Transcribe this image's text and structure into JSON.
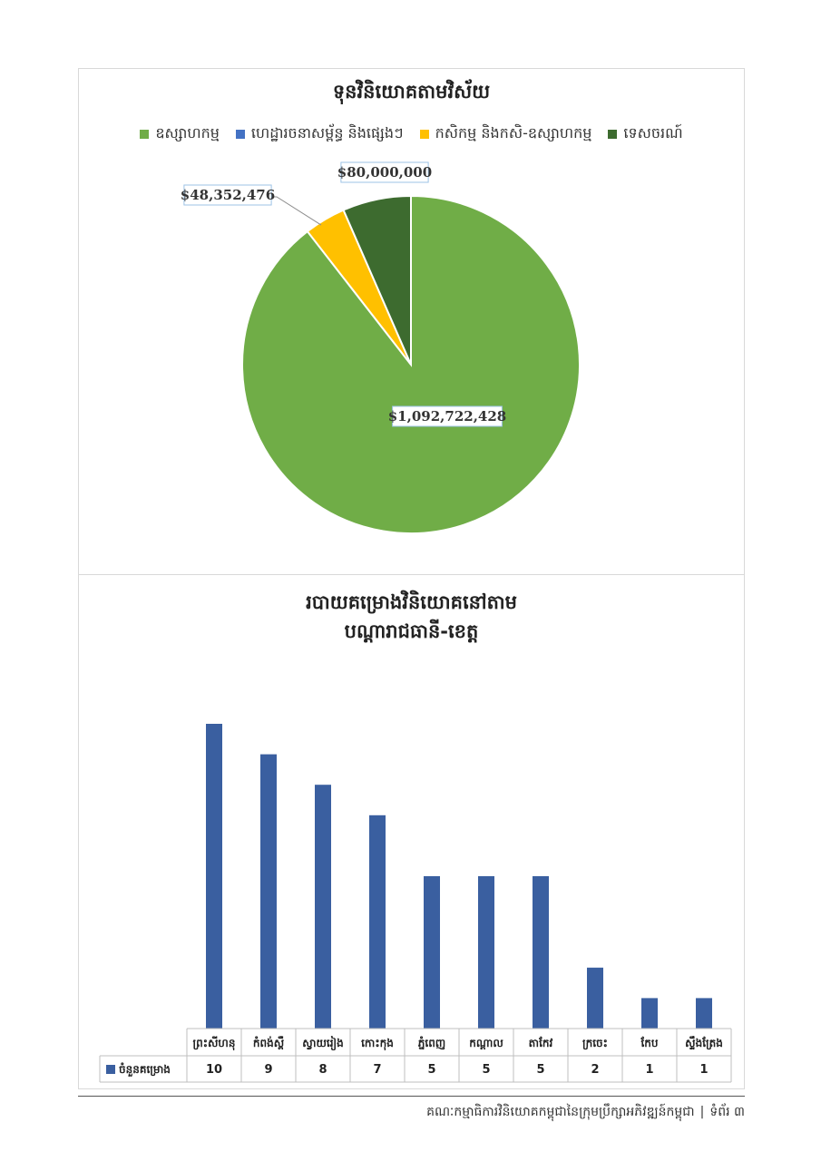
{
  "pie_chart": {
    "title": "ទុនវិនិយោគតាមវិស័យ",
    "legend": [
      {
        "label": "ឧស្សាហកម្ម",
        "color": "#70ad47"
      },
      {
        "label": "ហេដ្ឋារចនាសម្ព័ន្ធ និងផ្សេងៗ",
        "color": "#4472c4"
      },
      {
        "label": "កសិកម្ម និងកសិ-ឧស្សាហកម្ម",
        "color": "#ffc000"
      },
      {
        "label": "ទេសចរណ៍",
        "color": "#3d6b2f"
      }
    ]
  },
  "bar_chart": {
    "title_line1": "របាយគម្រោងវិនិយោគនៅតាម",
    "title_line2": "បណ្ដារាជធានី-ខេត្ត",
    "row_label": "ចំនួនគម្រោង",
    "bar_color": "#3a5fa0"
  },
  "chart_data": [
    {
      "type": "pie",
      "title": "ទុនវិនិយោគតាមវិស័យ",
      "series": [
        {
          "name": "ឧស្សាហកម្ម",
          "value": 1092722428,
          "label": "$1,092,722,428",
          "color": "#70ad47"
        },
        {
          "name": "ហេដ្ឋារចនាសម្ព័ន្ធ និងផ្សេងៗ",
          "value": 0,
          "label": "",
          "color": "#4472c4"
        },
        {
          "name": "កសិកម្ម និងកសិ-ឧស្សាហកម្ម",
          "value": 48352476,
          "label": "$48,352,476",
          "color": "#ffc000"
        },
        {
          "name": "ទេសចរណ៍",
          "value": 80000000,
          "label": "$80,000,000",
          "color": "#3d6b2f"
        }
      ]
    },
    {
      "type": "bar",
      "title": "របាយគម្រោងវិនិយោគនៅតាម បណ្ដារាជធានី-ខេត្ត",
      "categories": [
        "ព្រះសីហនុ",
        "កំពង់ស្ពឺ",
        "ស្វាយរៀង",
        "កោះកុង",
        "ភ្នំពេញ",
        "កណ្ដាល",
        "តាកែវ",
        "ក្រចេះ",
        "កែប",
        "ស្ទឹងត្រែង"
      ],
      "series": [
        {
          "name": "ចំនួនគម្រោង",
          "values": [
            10,
            9,
            8,
            7,
            5,
            5,
            5,
            2,
            1,
            1
          ]
        }
      ],
      "ylim": [
        0,
        10
      ],
      "grid": false,
      "legend": "data-table"
    }
  ],
  "footer": {
    "text": "គណៈកម្មាធិការវិនិយោគកម្ពុជានៃក្រុមប្រឹក្សាអភិវឌ្ឍន៍កម្ពុជា",
    "separator": "|",
    "page_label": "ទំព័រ ៣"
  }
}
